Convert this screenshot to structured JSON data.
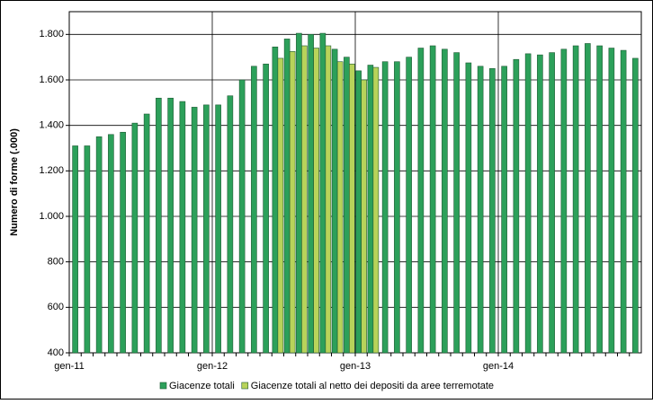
{
  "chart_data": {
    "type": "bar",
    "y_label": "Numero di forme (.000)",
    "categories": [
      "gen-11",
      null,
      null,
      null,
      null,
      null,
      null,
      null,
      null,
      null,
      null,
      null,
      "gen-12",
      null,
      null,
      null,
      null,
      null,
      null,
      null,
      null,
      null,
      null,
      null,
      "gen-13",
      null,
      null,
      null,
      null,
      null,
      null,
      null,
      null,
      null,
      null,
      null,
      "gen-14",
      null,
      null,
      null,
      null,
      null,
      null,
      null,
      null,
      null,
      null,
      null
    ],
    "series": [
      {
        "name": "Giacenze totali",
        "color": "#2ca05a",
        "values": [
          1310,
          1310,
          1350,
          1360,
          1370,
          1410,
          1450,
          1520,
          1520,
          1505,
          1480,
          1490,
          1490,
          1530,
          1600,
          1660,
          1670,
          1745,
          1780,
          1805,
          1800,
          1805,
          1735,
          1700,
          1640,
          1665,
          1680,
          1680,
          1700,
          1740,
          1750,
          1735,
          1720,
          1675,
          1660,
          1650,
          1660,
          1690,
          1715,
          1710,
          1720,
          1735,
          1750,
          1760,
          1750,
          1740,
          1730,
          1695
        ]
      },
      {
        "name": "Giacenze totali al netto dei depositi da aree terremotate",
        "color": "#b8d35a",
        "values": [
          null,
          null,
          null,
          null,
          null,
          null,
          null,
          null,
          null,
          null,
          null,
          null,
          null,
          null,
          null,
          null,
          null,
          1695,
          1725,
          1750,
          1740,
          1750,
          1680,
          1670,
          1600,
          1655,
          null,
          null,
          null,
          null,
          null,
          null,
          null,
          null,
          null,
          null,
          null,
          null,
          null,
          null,
          null,
          null,
          null,
          null,
          null,
          null,
          null,
          null
        ]
      }
    ],
    "ylim": [
      400,
      1900
    ],
    "yticks": [
      400,
      600,
      800,
      {
        "value": 1000,
        "label": "1.000"
      },
      {
        "value": 1200,
        "label": "1.200"
      },
      {
        "value": 1400,
        "label": "1.400"
      },
      {
        "value": 1600,
        "label": "1.600"
      },
      {
        "value": 1800,
        "label": "1.800"
      }
    ],
    "grid": true
  }
}
